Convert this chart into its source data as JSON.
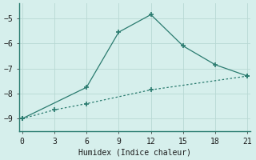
{
  "line1_x": [
    0,
    6,
    9,
    12,
    15,
    18,
    21
  ],
  "line1_y": [
    -9.0,
    -7.75,
    -5.55,
    -4.85,
    -6.1,
    -6.85,
    -7.3
  ],
  "line2_x": [
    0,
    3,
    6,
    12,
    21
  ],
  "line2_y": [
    -9.0,
    -8.65,
    -8.4,
    -7.85,
    -7.3
  ],
  "color": "#2a7b6f",
  "xlabel": "Humidex (Indice chaleur)",
  "xlim": [
    -0.3,
    21.3
  ],
  "ylim": [
    -9.5,
    -4.4
  ],
  "xticks": [
    0,
    3,
    6,
    9,
    12,
    15,
    18,
    21
  ],
  "yticks": [
    -9,
    -8,
    -7,
    -6,
    -5
  ],
  "bg_color": "#d6efec",
  "grid_color": "#b8d8d4",
  "spine_color": "#2a7b6f",
  "font_family": "monospace"
}
